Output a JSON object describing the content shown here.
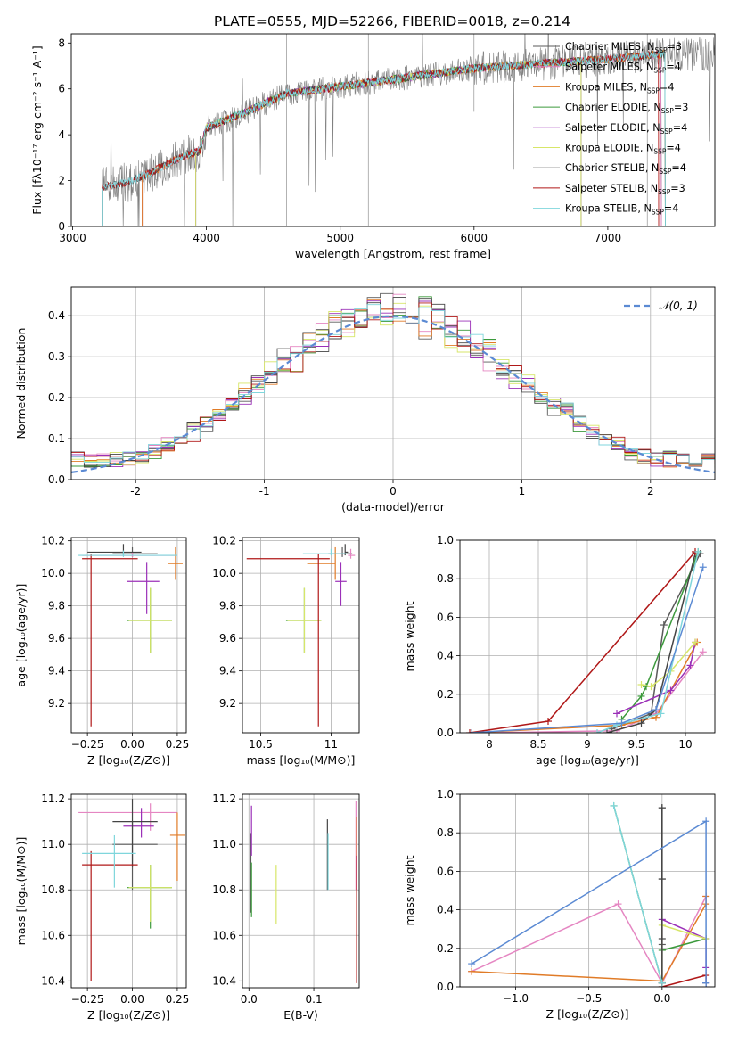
{
  "figure": {
    "title": "PLATE=0555, MJD=52266, FIBERID=0018, z=0.214"
  },
  "colors": {
    "data": "#808080",
    "models": [
      "#5a5a5a",
      "#e586c2",
      "#e07b27",
      "#3c9a3c",
      "#9b30b8",
      "#d7e668",
      "#444444",
      "#b01818",
      "#7fd6dc"
    ],
    "normal_curve": "#5b8ad3",
    "grid": "#b0b0b0"
  },
  "chart_data": [
    {
      "id": "spectrum",
      "type": "line",
      "title": "PLATE=0555, MJD=52266, FIBERID=0018, z=0.214",
      "xlabel": "wavelength [Angstrom, rest frame]",
      "ylabel": "Flux [fλ10⁻¹⁷ erg cm⁻² s⁻¹ A⁻¹]",
      "xlim": [
        2990,
        7800
      ],
      "ylim": [
        0,
        8.4
      ],
      "xticks": [
        3000,
        4000,
        5000,
        6000,
        7000
      ],
      "yticks": [
        0,
        2,
        4,
        6,
        8
      ],
      "grid": false,
      "legend_position": "top-right",
      "legend": [
        {
          "name": "Chabrier MILES, N",
          "sub": "SSP",
          "tail": "=3"
        },
        {
          "name": "Salpeter MILES, N",
          "sub": "SSP",
          "tail": "=4"
        },
        {
          "name": "Kroupa MILES, N",
          "sub": "SSP",
          "tail": "=4"
        },
        {
          "name": "Chabrier ELODIE, N",
          "sub": "SSP",
          "tail": "=3"
        },
        {
          "name": "Salpeter ELODIE, N",
          "sub": "SSP",
          "tail": "=4"
        },
        {
          "name": "Kroupa ELODIE, N",
          "sub": "SSP",
          "tail": "=4"
        },
        {
          "name": "Chabrier STELIB, N",
          "sub": "SSP",
          "tail": "=4"
        },
        {
          "name": "Salpeter STELIB, N",
          "sub": "SSP",
          "tail": "=3"
        },
        {
          "name": "Kroupa STELIB, N",
          "sub": "SSP",
          "tail": "=4"
        }
      ],
      "continuum_knots": [
        [
          3220,
          1.7
        ],
        [
          3400,
          1.9
        ],
        [
          3600,
          2.4
        ],
        [
          3800,
          3.0
        ],
        [
          3950,
          3.3
        ],
        [
          4000,
          4.3
        ],
        [
          4300,
          5.0
        ],
        [
          4600,
          5.8
        ],
        [
          5000,
          6.1
        ],
        [
          5500,
          6.5
        ],
        [
          6000,
          6.9
        ],
        [
          6500,
          7.1
        ],
        [
          7000,
          7.3
        ],
        [
          7400,
          7.5
        ]
      ],
      "model_ranges": [
        [
          3520,
          7400
        ],
        [
          3520,
          7400
        ],
        [
          3520,
          7430
        ],
        [
          3920,
          6800
        ],
        [
          3920,
          6800
        ],
        [
          3920,
          6800
        ],
        [
          3220,
          7430
        ],
        [
          3220,
          7380
        ],
        [
          3220,
          7430
        ]
      ]
    },
    {
      "id": "residual-histogram",
      "type": "histogram",
      "xlabel": "(data-model)/error",
      "ylabel": "Normed distribution",
      "xlim": [
        -2.5,
        2.5
      ],
      "ylim": [
        0,
        0.47
      ],
      "xticks": [
        -2,
        -1,
        0,
        1,
        2
      ],
      "yticks": [
        0.0,
        0.1,
        0.2,
        0.3,
        0.4
      ],
      "grid": true,
      "legend_position": "top-right",
      "legend": [
        "𝒩(0, 1)"
      ],
      "bin_width": 0.1,
      "normal": {
        "mean": 0,
        "sigma": 1
      }
    },
    {
      "id": "age-vs-metallicity",
      "type": "errorbar",
      "xlabel": "Z [log₁₀(Z/Z⊙)]",
      "ylabel": "age  [log₁₀(age/yr)]",
      "xlim": [
        -0.34,
        0.3
      ],
      "ylim": [
        9.02,
        10.22
      ],
      "xticks": [
        -0.25,
        0.0,
        0.25
      ],
      "xticklabels": [
        "−0.25",
        "0.00",
        "0.25"
      ],
      "yticks": [
        9.2,
        9.4,
        9.6,
        9.8,
        10.0,
        10.2
      ],
      "grid": true,
      "points": [
        {
          "x": 0.0,
          "y": 10.12,
          "xerr": [
            0.11,
            0.14
          ],
          "yerr": [
            0.02,
            0.04
          ],
          "color": 0
        },
        {
          "x": 0.0,
          "y": 10.11,
          "xerr": [
            0.28,
            0.24
          ],
          "yerr": [
            0.01,
            0.02
          ],
          "color": 1
        },
        {
          "x": 0.24,
          "y": 10.06,
          "xerr": [
            0.04,
            0.04
          ],
          "yerr": [
            0.1,
            0.1
          ],
          "color": 2
        },
        {
          "x": 0.1,
          "y": 9.71,
          "xerr": [
            0.13,
            0.12
          ],
          "yerr": [
            0.2,
            0.2
          ],
          "color": 3
        },
        {
          "x": 0.08,
          "y": 9.95,
          "xerr": [
            0.11,
            0.07
          ],
          "yerr": [
            0.2,
            0.12
          ],
          "color": 4
        },
        {
          "x": 0.1,
          "y": 9.71,
          "xerr": [
            0.12,
            0.12
          ],
          "yerr": [
            0.2,
            0.2
          ],
          "color": 5
        },
        {
          "x": -0.05,
          "y": 10.13,
          "xerr": [
            0.2,
            0.1
          ],
          "yerr": [
            0.02,
            0.05
          ],
          "color": 6
        },
        {
          "x": -0.23,
          "y": 10.09,
          "xerr": [
            0.05,
            0.26
          ],
          "yerr": [
            1.03,
            0.03
          ],
          "color": 7
        },
        {
          "x": -0.05,
          "y": 10.11,
          "xerr": [
            0.25,
            0.3
          ],
          "yerr": [
            0.01,
            0.03
          ],
          "color": 8
        }
      ]
    },
    {
      "id": "age-vs-mass",
      "type": "errorbar",
      "xlabel": "mass [log₁₀(M/M⊙)]",
      "ylabel": "",
      "xlim": [
        10.37,
        11.2
      ],
      "ylim": [
        9.02,
        10.22
      ],
      "xticks": [
        10.5,
        11.0
      ],
      "yticks": [
        9.2,
        9.4,
        9.6,
        9.8,
        10.0,
        10.2
      ],
      "grid": true,
      "points": [
        {
          "x": 11.08,
          "y": 10.12,
          "xerr": [
            0.1,
            0.07
          ],
          "yerr": [
            0.02,
            0.04
          ],
          "color": 0
        },
        {
          "x": 11.14,
          "y": 10.11,
          "xerr": [
            0.02,
            0.03
          ],
          "yerr": [
            0.02,
            0.04
          ],
          "color": 1
        },
        {
          "x": 11.03,
          "y": 10.06,
          "xerr": [
            0.2,
            0.0
          ],
          "yerr": [
            0.1,
            0.1
          ],
          "color": 2
        },
        {
          "x": 10.81,
          "y": 9.71,
          "xerr": [
            0.13,
            0.12
          ],
          "yerr": [
            0.2,
            0.2
          ],
          "color": 3
        },
        {
          "x": 11.07,
          "y": 9.95,
          "xerr": [
            0.04,
            0.04
          ],
          "yerr": [
            0.15,
            0.12
          ],
          "color": 4
        },
        {
          "x": 10.81,
          "y": 9.71,
          "xerr": [
            0.12,
            0.12
          ],
          "yerr": [
            0.2,
            0.2
          ],
          "color": 5
        },
        {
          "x": 11.1,
          "y": 10.13,
          "xerr": [
            0.0,
            0.02
          ],
          "yerr": [
            0.02,
            0.05
          ],
          "color": 6
        },
        {
          "x": 10.91,
          "y": 10.09,
          "xerr": [
            0.51,
            0.08
          ],
          "yerr": [
            1.03,
            0.03
          ],
          "color": 7
        },
        {
          "x": 11.0,
          "y": 10.12,
          "xerr": [
            0.2,
            0.11
          ],
          "yerr": [
            0.01,
            0.03
          ],
          "color": 8
        }
      ]
    },
    {
      "id": "mass-weight-vs-age",
      "type": "line",
      "xlabel": "age  [log₁₀(age/yr)]",
      "ylabel": "mass weight",
      "xlim": [
        7.7,
        10.3
      ],
      "ylim": [
        0,
        1.0
      ],
      "xticks": [
        8.0,
        8.5,
        9.0,
        9.5,
        10.0
      ],
      "yticks": [
        0.0,
        0.2,
        0.4,
        0.6,
        0.8,
        1.0
      ],
      "grid": true,
      "series": [
        {
          "color": 0,
          "x": [
            9.25,
            9.65,
            9.78,
            10.15
          ],
          "y": [
            0.02,
            0.1,
            0.56,
            0.93
          ]
        },
        {
          "color": 1,
          "x": [
            8.0,
            9.3,
            9.7,
            10.18
          ],
          "y": [
            0.0,
            0.01,
            0.1,
            0.42
          ]
        },
        {
          "color": 2,
          "x": [
            7.82,
            9.35,
            9.7,
            10.12
          ],
          "y": [
            0.0,
            0.04,
            0.08,
            0.47
          ]
        },
        {
          "color": 3,
          "x": [
            9.35,
            9.55,
            9.6,
            10.13
          ],
          "y": [
            0.07,
            0.19,
            0.24,
            0.94
          ]
        },
        {
          "color": 4,
          "x": [
            9.3,
            9.85,
            10.05,
            10.1
          ],
          "y": [
            0.1,
            0.22,
            0.35,
            0.47
          ]
        },
        {
          "color": 5,
          "x": [
            9.55,
            9.65,
            9.85,
            10.1
          ],
          "y": [
            0.25,
            0.24,
            0.32,
            0.47
          ]
        },
        {
          "color": 6,
          "x": [
            9.2,
            9.55,
            9.7,
            10.1
          ],
          "y": [
            0.0,
            0.05,
            0.12,
            0.93
          ]
        },
        {
          "color": 7,
          "x": [
            7.8,
            8.6,
            10.1
          ],
          "y": [
            0.0,
            0.06,
            0.94
          ]
        },
        {
          "color": 8,
          "x": [
            9.1,
            9.3,
            9.75,
            10.13
          ],
          "y": [
            0.0,
            0.04,
            0.1,
            0.94
          ]
        },
        {
          "color": "normal_curve",
          "x": [
            7.82,
            9.35,
            9.7,
            10.18
          ],
          "y": [
            0.0,
            0.05,
            0.12,
            0.86
          ]
        }
      ]
    },
    {
      "id": "mass-vs-metallicity",
      "type": "errorbar",
      "xlabel": "Z [log₁₀(Z/Z⊙)]",
      "ylabel": "mass [log₁₀(M/M⊙)]",
      "xlim": [
        -0.34,
        0.3
      ],
      "ylim": [
        10.37,
        11.22
      ],
      "xticks": [
        -0.25,
        0.0,
        0.25
      ],
      "xticklabels": [
        "−0.25",
        "0.00",
        "0.25"
      ],
      "yticks": [
        10.4,
        10.6,
        10.8,
        11.0,
        11.2
      ],
      "grid": true,
      "points": [
        {
          "x": 0.0,
          "y": 11.0,
          "xerr": [
            0.11,
            0.14
          ],
          "yerr": [
            0.2,
            0.1
          ],
          "color": 0
        },
        {
          "x": 0.1,
          "y": 11.14,
          "xerr": [
            0.4,
            0.15
          ],
          "yerr": [
            0.08,
            0.04
          ],
          "color": 1
        },
        {
          "x": 0.25,
          "y": 11.04,
          "xerr": [
            0.04,
            0.04
          ],
          "yerr": [
            0.2,
            0.1
          ],
          "color": 2
        },
        {
          "x": 0.1,
          "y": 10.81,
          "xerr": [
            0.13,
            0.12
          ],
          "yerr": [
            0.18,
            0.1
          ],
          "color": 3
        },
        {
          "x": 0.05,
          "y": 11.08,
          "xerr": [
            0.1,
            0.07
          ],
          "yerr": [
            0.05,
            0.08
          ],
          "color": 4
        },
        {
          "x": 0.1,
          "y": 10.81,
          "xerr": [
            0.12,
            0.12
          ],
          "yerr": [
            0.15,
            0.1
          ],
          "color": 5
        },
        {
          "x": 0.0,
          "y": 11.1,
          "xerr": [
            0.11,
            0.14
          ],
          "yerr": [
            0.2,
            0.1
          ],
          "color": 6
        },
        {
          "x": -0.23,
          "y": 10.91,
          "xerr": [
            0.05,
            0.26
          ],
          "yerr": [
            0.51,
            0.06
          ],
          "color": 7
        },
        {
          "x": -0.1,
          "y": 10.96,
          "xerr": [
            0.18,
            0.12
          ],
          "yerr": [
            0.15,
            0.08
          ],
          "color": 8
        }
      ]
    },
    {
      "id": "mass-vs-extinction",
      "type": "errorbar",
      "xlabel": "E(B-V)",
      "ylabel": "",
      "xlim": [
        -0.01,
        0.17
      ],
      "ylim": [
        10.37,
        11.22
      ],
      "xticks": [
        0.0,
        0.1
      ],
      "xticklabels": [
        "0.0",
        "0.1"
      ],
      "yticks": [
        10.4,
        10.6,
        10.8,
        11.0,
        11.2
      ],
      "grid": true,
      "points": [
        {
          "x": 0.003,
          "y": 10.9,
          "xerr": [
            0,
            0
          ],
          "yerr": [
            0.2,
            0.15
          ],
          "color": 0
        },
        {
          "x": 0.165,
          "y": 10.95,
          "xerr": [
            0,
            0
          ],
          "yerr": [
            0.15,
            0.24
          ],
          "color": 1
        },
        {
          "x": 0.166,
          "y": 11.0,
          "xerr": [
            0,
            0
          ],
          "yerr": [
            0.12,
            0.12
          ],
          "color": 2
        },
        {
          "x": 0.004,
          "y": 10.8,
          "xerr": [
            0,
            0
          ],
          "yerr": [
            0.12,
            0.12
          ],
          "color": 3
        },
        {
          "x": 0.004,
          "y": 11.05,
          "xerr": [
            0,
            0
          ],
          "yerr": [
            0.1,
            0.12
          ],
          "color": 4
        },
        {
          "x": 0.042,
          "y": 10.78,
          "xerr": [
            0,
            0
          ],
          "yerr": [
            0.13,
            0.13
          ],
          "color": 5
        },
        {
          "x": 0.121,
          "y": 10.97,
          "xerr": [
            0,
            0
          ],
          "yerr": [
            0.17,
            0.14
          ],
          "color": 6
        },
        {
          "x": 0.166,
          "y": 10.7,
          "xerr": [
            0,
            0
          ],
          "yerr": [
            0.31,
            0.25
          ],
          "color": 7
        },
        {
          "x": 0.122,
          "y": 10.95,
          "xerr": [
            0,
            0
          ],
          "yerr": [
            0.15,
            0.1
          ],
          "color": 8
        }
      ]
    },
    {
      "id": "mass-weight-vs-metallicity",
      "type": "line",
      "xlabel": "Z [log₁₀(Z/Z⊙)]",
      "ylabel": "mass weight",
      "xlim": [
        -1.38,
        0.36
      ],
      "ylim": [
        0,
        1.0
      ],
      "xticks": [
        -1.0,
        -0.5,
        0.0
      ],
      "xticklabels": [
        "−1.0",
        "−0.5",
        "0.0"
      ],
      "yticks": [
        0.0,
        0.2,
        0.4,
        0.6,
        0.8,
        1.0
      ],
      "grid": true,
      "series": [
        {
          "color": 0,
          "x": [
            0.0,
            0.0,
            0.0,
            0.0
          ],
          "y": [
            0.0,
            0.22,
            0.56,
            0.93
          ]
        },
        {
          "color": 1,
          "x": [
            -1.3,
            -0.3,
            0.0,
            0.3
          ],
          "y": [
            0.08,
            0.43,
            0.02,
            0.47
          ]
        },
        {
          "color": 2,
          "x": [
            -1.3,
            0.0,
            0.3,
            0.3
          ],
          "y": [
            0.08,
            0.03,
            0.43,
            0.47
          ]
        },
        {
          "color": 3,
          "x": [
            -0.33,
            0.0,
            0.0,
            0.3
          ],
          "y": [
            0.94,
            0.02,
            0.19,
            0.25
          ]
        },
        {
          "color": 4,
          "x": [
            0.0,
            0.0,
            0.3,
            0.3
          ],
          "y": [
            0.02,
            0.35,
            0.25,
            0.1
          ]
        },
        {
          "color": 5,
          "x": [
            0.0,
            0.0,
            0.3
          ],
          "y": [
            0.02,
            0.32,
            0.25
          ]
        },
        {
          "color": 6,
          "x": [
            0.0,
            0.0,
            0.0,
            0.0
          ],
          "y": [
            0.02,
            0.25,
            0.56,
            0.93
          ]
        },
        {
          "color": 7,
          "x": [
            0.0,
            0.3,
            0.3
          ],
          "y": [
            0.0,
            0.06,
            0.02
          ]
        },
        {
          "color": 8,
          "x": [
            -0.33,
            0.0
          ],
          "y": [
            0.94,
            0.02
          ]
        },
        {
          "color": "normal_curve",
          "x": [
            -1.3,
            0.3,
            0.3,
            0.3
          ],
          "y": [
            0.12,
            0.86,
            0.02,
            0.02
          ]
        }
      ]
    }
  ]
}
